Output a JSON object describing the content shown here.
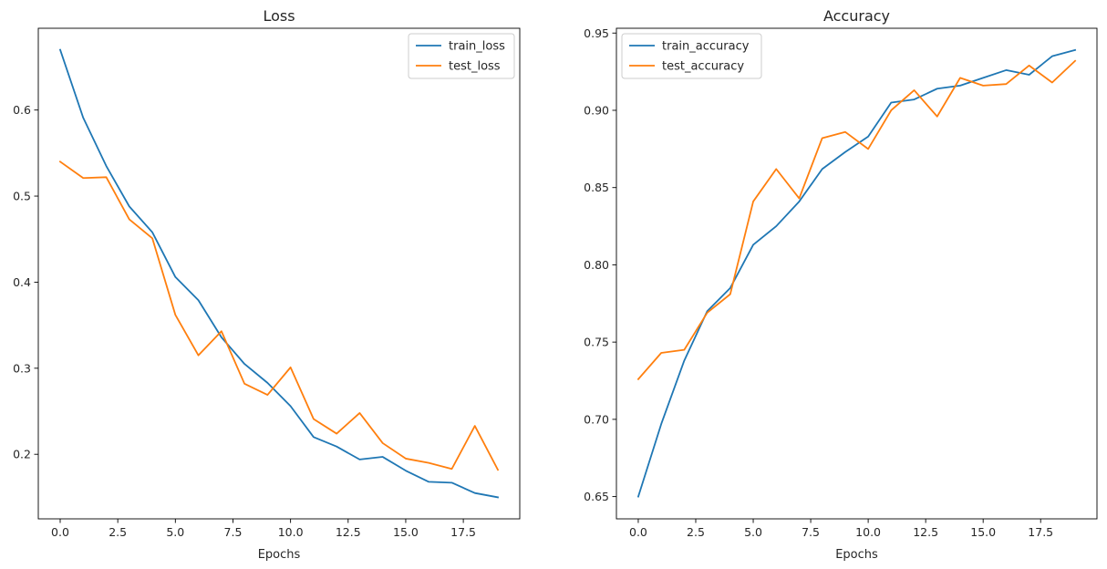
{
  "chart_data": [
    {
      "type": "line",
      "title": "Loss",
      "xlabel": "Epochs",
      "ylabel": "",
      "xlim": [
        -0.95,
        19.95
      ],
      "ylim": [
        0.125,
        0.695
      ],
      "xticks": [
        0.0,
        2.5,
        5.0,
        7.5,
        10.0,
        12.5,
        15.0,
        17.5
      ],
      "xtick_labels": [
        "0.0",
        "2.5",
        "5.0",
        "7.5",
        "10.0",
        "12.5",
        "15.0",
        "17.5"
      ],
      "yticks": [
        0.2,
        0.3,
        0.4,
        0.5,
        0.6
      ],
      "ytick_labels": [
        "0.2",
        "0.3",
        "0.4",
        "0.5",
        "0.6"
      ],
      "legend_position": "top-right",
      "grid": false,
      "x": [
        0,
        1,
        2,
        3,
        4,
        5,
        6,
        7,
        8,
        9,
        10,
        11,
        12,
        13,
        14,
        15,
        16,
        17,
        18,
        19
      ],
      "series": [
        {
          "name": "train_loss",
          "color": "#1f77b4",
          "values": [
            0.67,
            0.591,
            0.535,
            0.488,
            0.458,
            0.406,
            0.379,
            0.336,
            0.305,
            0.283,
            0.256,
            0.22,
            0.209,
            0.194,
            0.197,
            0.181,
            0.168,
            0.167,
            0.155,
            0.15
          ]
        },
        {
          "name": "test_loss",
          "color": "#ff7f0e",
          "values": [
            0.54,
            0.521,
            0.522,
            0.473,
            0.451,
            0.362,
            0.315,
            0.343,
            0.282,
            0.269,
            0.301,
            0.241,
            0.224,
            0.248,
            0.213,
            0.195,
            0.19,
            0.183,
            0.233,
            0.182
          ]
        }
      ]
    },
    {
      "type": "line",
      "title": "Accuracy",
      "xlabel": "Epochs",
      "ylabel": "",
      "xlim": [
        -0.95,
        19.95
      ],
      "ylim": [
        0.6356,
        0.9531
      ],
      "xticks": [
        0.0,
        2.5,
        5.0,
        7.5,
        10.0,
        12.5,
        15.0,
        17.5
      ],
      "xtick_labels": [
        "0.0",
        "2.5",
        "5.0",
        "7.5",
        "10.0",
        "12.5",
        "15.0",
        "17.5"
      ],
      "yticks": [
        0.65,
        0.7,
        0.75,
        0.8,
        0.85,
        0.9,
        0.95
      ],
      "ytick_labels": [
        "0.65",
        "0.70",
        "0.75",
        "0.80",
        "0.85",
        "0.90",
        "0.95"
      ],
      "legend_position": "top-left",
      "grid": false,
      "x": [
        0,
        1,
        2,
        3,
        4,
        5,
        6,
        7,
        8,
        9,
        10,
        11,
        12,
        13,
        14,
        15,
        16,
        17,
        18,
        19
      ],
      "series": [
        {
          "name": "train_accuracy",
          "color": "#1f77b4",
          "values": [
            0.65,
            0.697,
            0.738,
            0.77,
            0.785,
            0.813,
            0.825,
            0.841,
            0.862,
            0.873,
            0.883,
            0.905,
            0.907,
            0.914,
            0.916,
            0.921,
            0.926,
            0.923,
            0.935,
            0.939
          ]
        },
        {
          "name": "test_accuracy",
          "color": "#ff7f0e",
          "values": [
            0.726,
            0.743,
            0.745,
            0.769,
            0.781,
            0.841,
            0.862,
            0.843,
            0.882,
            0.886,
            0.875,
            0.9,
            0.913,
            0.896,
            0.921,
            0.916,
            0.917,
            0.929,
            0.918,
            0.932
          ]
        }
      ]
    }
  ]
}
